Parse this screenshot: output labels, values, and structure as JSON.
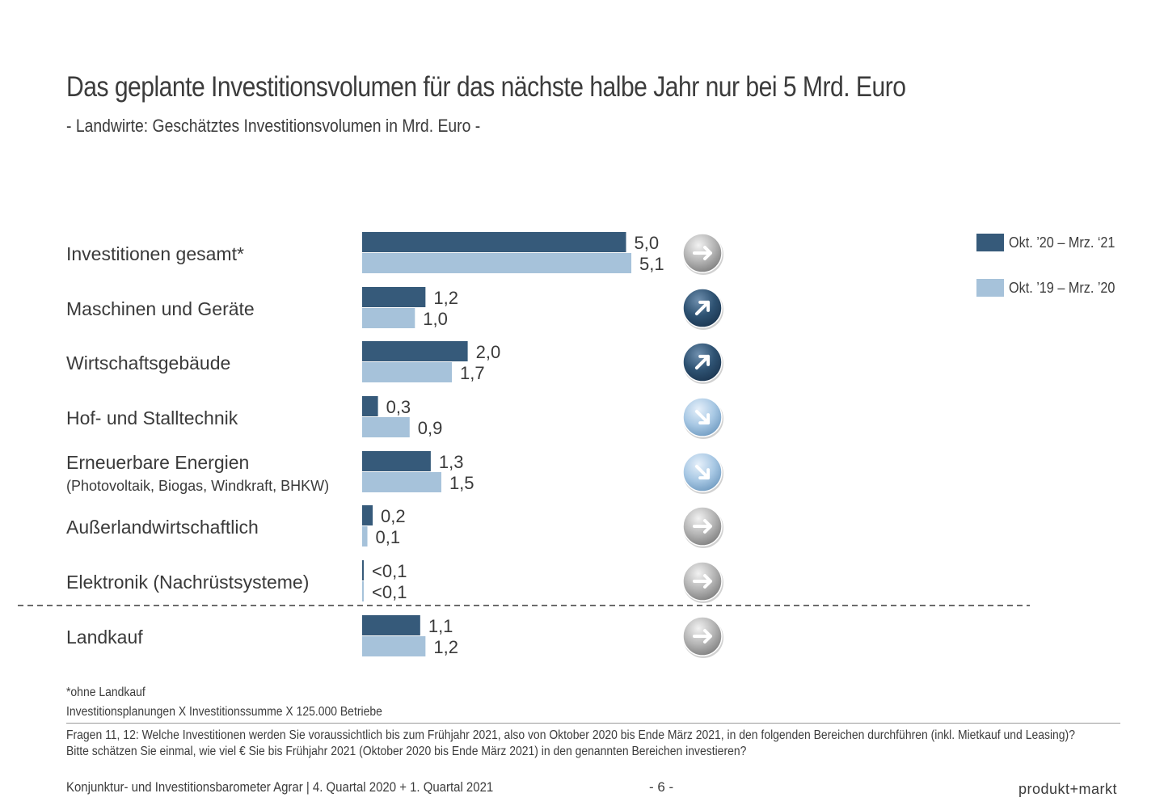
{
  "title": "Das geplante Investitionsvolumen für das nächste halbe Jahr nur bei 5 Mrd. Euro",
  "subtitle": "- Landwirte: Geschätztes Investitionsvolumen in Mrd. Euro -",
  "legend": {
    "series_a": "Okt. ’20 – Mrz. ‘21",
    "series_b": "Okt. ’19 – Mrz. ’20"
  },
  "colors": {
    "series_a": "#365a7a",
    "series_b": "#a6c2da",
    "arrow_gray": "#9a9a9a",
    "arrow_dark": "#2e5272",
    "arrow_light": "#8eb4d6"
  },
  "chart_data": {
    "type": "bar",
    "orientation": "horizontal",
    "categories": [
      "Investitionen gesamt*",
      "Maschinen und Geräte",
      "Wirtschaftsgebäude",
      "Hof- und Stalltechnik",
      "Erneuerbare Energien",
      "Außerlandwirtschaftlich",
      "Elektronik (Nachrüstsysteme)",
      "Landkauf"
    ],
    "category_notes": [
      "",
      "",
      "",
      "",
      "(Photovoltaik, Biogas, Windkraft, BHKW)",
      "",
      "",
      ""
    ],
    "series": [
      {
        "name": "Okt. ’20 – Mrz. ‘21",
        "values": [
          5.0,
          1.2,
          2.0,
          0.3,
          1.3,
          0.2,
          0.02,
          1.1
        ],
        "labels": [
          "5,0",
          "1,2",
          "2,0",
          "0,3",
          "1,3",
          "0,2",
          "<0,1",
          "1,1"
        ]
      },
      {
        "name": "Okt. ’19 – Mrz. ’20",
        "values": [
          5.1,
          1.0,
          1.7,
          0.9,
          1.5,
          0.1,
          0.02,
          1.2
        ],
        "labels": [
          "5,1",
          "1,0",
          "1,7",
          "0,9",
          "1,5",
          "0,1",
          "<0,1",
          "1,2"
        ]
      }
    ],
    "trend_icons": [
      "arrow-right",
      "arrow-up-right",
      "arrow-up-right",
      "arrow-down-right",
      "arrow-down-right",
      "arrow-right",
      "arrow-right",
      "arrow-right"
    ],
    "trend_styles": [
      "gray",
      "dark",
      "dark",
      "light",
      "light",
      "gray",
      "gray",
      "gray"
    ],
    "separator_before_index": 7,
    "xlim": [
      0,
      5.1
    ]
  },
  "footnotes": {
    "asterisk": "*ohne Landkauf",
    "method": "Investitionsplanungen X Investitionssumme X 125.000 Betriebe",
    "question": "Fragen 11, 12: Welche Investitionen werden Sie voraussichtlich bis zum Frühjahr 2021, also von Oktober 2020 bis Ende März 2021, in den folgenden Bereichen durchführen (inkl. Mietkauf und Leasing)? Bitte schätzen Sie einmal, wie viel € Sie bis Frühjahr 2021 (Oktober 2020 bis Ende März 2021) in den genannten Bereichen investieren?"
  },
  "footer": {
    "left": "Konjunktur- und Investitionsbarometer Agrar | 4. Quartal 2020 + 1. Quartal 2021",
    "page": "- 6 -",
    "brand": "produkt+markt"
  }
}
